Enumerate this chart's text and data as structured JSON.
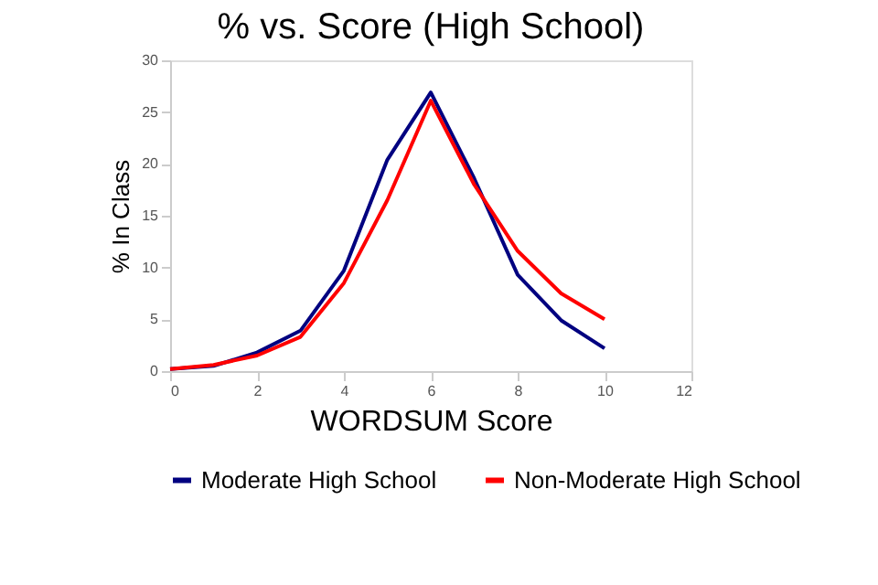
{
  "chart_data": {
    "type": "line",
    "title": "% vs. Score (High School)",
    "xlabel": "WORDSUM Score",
    "ylabel": "% In Class",
    "x": [
      0,
      1,
      2,
      3,
      4,
      5,
      6,
      7,
      8,
      9,
      10
    ],
    "series": [
      {
        "name": "Moderate High School",
        "color": "#000080",
        "values": [
          0.2,
          0.5,
          1.8,
          3.9,
          9.7,
          20.4,
          26.9,
          18.6,
          9.3,
          4.9,
          2.2
        ]
      },
      {
        "name": "Non-Moderate High School",
        "color": "#ff0000",
        "values": [
          0.2,
          0.6,
          1.5,
          3.3,
          8.5,
          16.5,
          26.1,
          18.0,
          11.6,
          7.5,
          5.0
        ]
      }
    ],
    "xlim": [
      0,
      12
    ],
    "xticks": [
      0,
      2,
      4,
      6,
      8,
      10,
      12
    ],
    "ylim": [
      0,
      30
    ],
    "yticks": [
      0,
      5,
      10,
      15,
      20,
      25,
      30
    ],
    "grid": false,
    "legend": "bottom",
    "marker": "none",
    "line_style": "solid"
  }
}
